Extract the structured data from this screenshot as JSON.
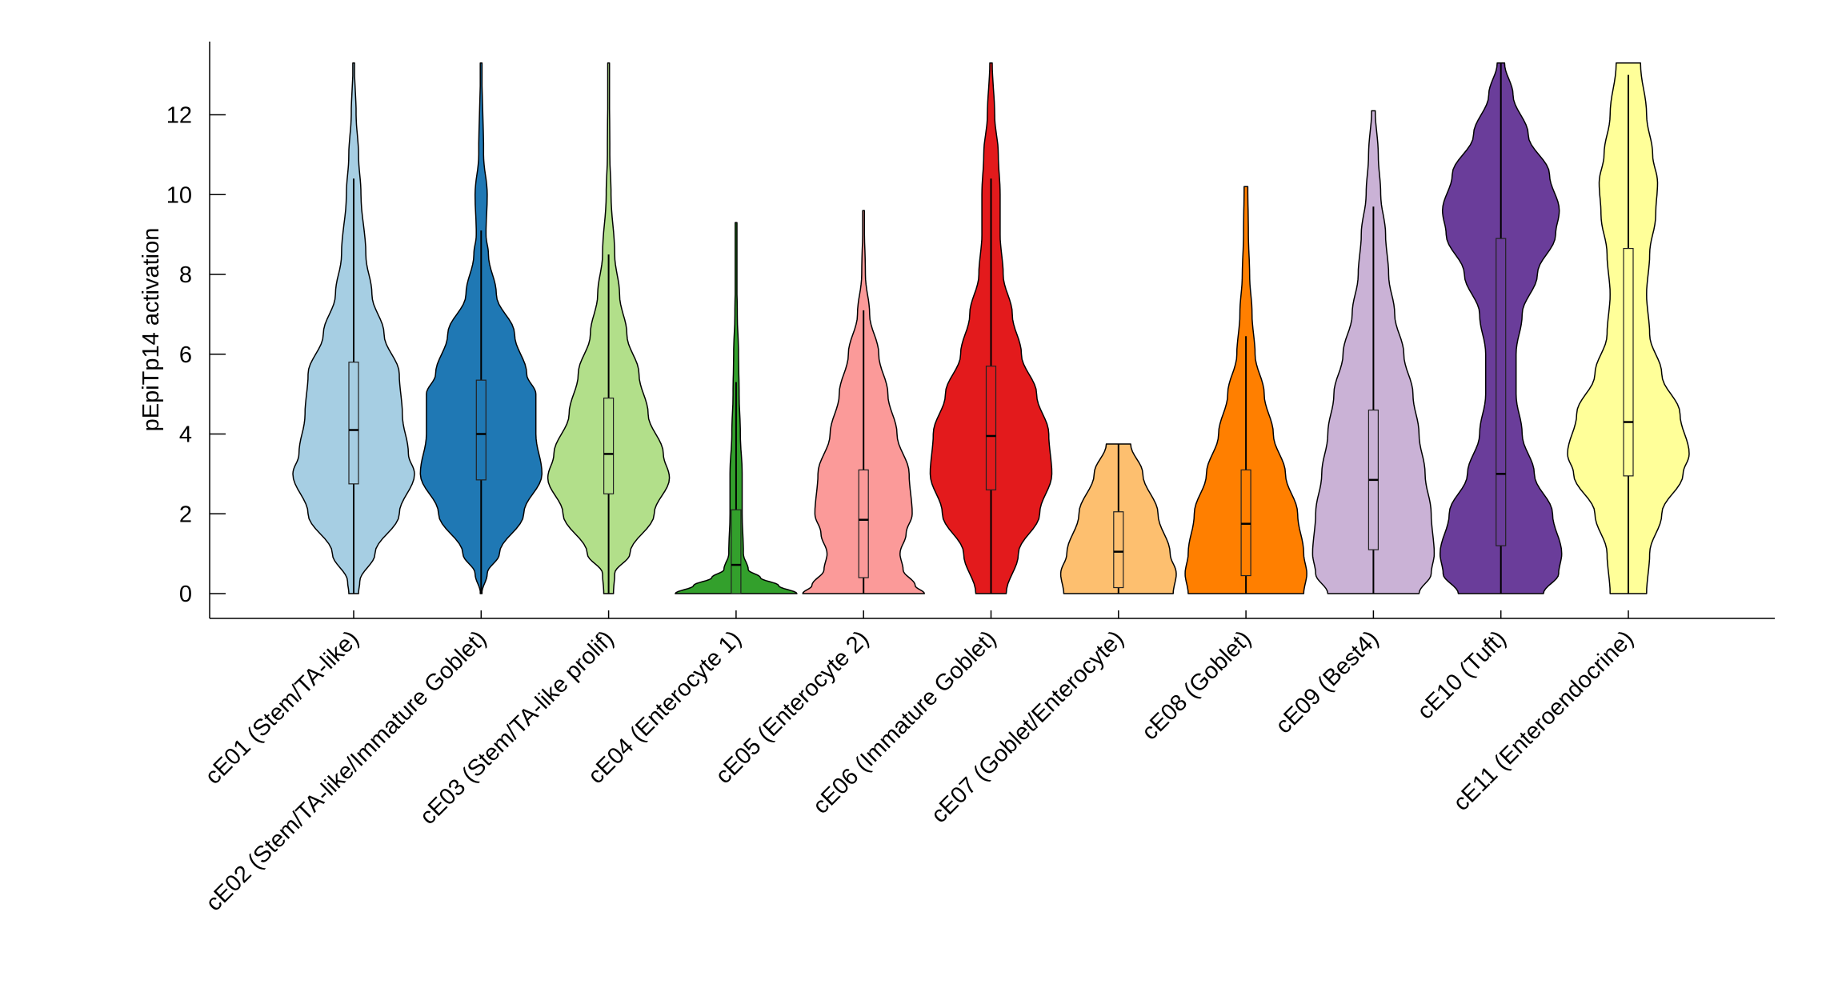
{
  "chart_data": {
    "type": "violin",
    "title": "",
    "xlabel": "",
    "ylabel": "pEpiTp14 activation",
    "ylim": [
      -0.65,
      13.8
    ],
    "yticks": [
      0,
      2,
      4,
      6,
      8,
      10,
      12
    ],
    "grid": false,
    "legend": "none",
    "categories": [
      "cE01 (Stem/TA-like)",
      "cE02 (Stem/TA-like/Immature Goblet)",
      "cE03 (Stem/TA-like prolif)",
      "cE04 (Enterocyte 1)",
      "cE05 (Enterocyte 2)",
      "cE06 (Immature Goblet)",
      "cE07 (Goblet/Enterocyte)",
      "cE08 (Goblet)",
      "cE09 (Best4)",
      "cE10 (Tuft)",
      "cE11 (Enteroendocrine)"
    ],
    "series": [
      {
        "name": "cE01 (Stem/TA-like)",
        "color": "#a6cee3",
        "min": 0,
        "max": 13.3,
        "q1": 2.75,
        "median": 4.1,
        "q3": 5.8,
        "whisker_low": 0,
        "whisker_high": 10.4,
        "density": [
          [
            0,
            0.08
          ],
          [
            0.3,
            0.1
          ],
          [
            1,
            0.35
          ],
          [
            2,
            0.75
          ],
          [
            3,
            1.0
          ],
          [
            3.5,
            0.9
          ],
          [
            4.5,
            0.8
          ],
          [
            5.5,
            0.75
          ],
          [
            6.5,
            0.5
          ],
          [
            7.5,
            0.3
          ],
          [
            8.5,
            0.2
          ],
          [
            10,
            0.12
          ],
          [
            11,
            0.08
          ],
          [
            12,
            0.04
          ],
          [
            13.3,
            0.01
          ]
        ]
      },
      {
        "name": "cE02 (Stem/TA-like/Immature Goblet)",
        "color": "#1f78b4",
        "min": 0,
        "max": 13.3,
        "q1": 2.85,
        "median": 4.0,
        "q3": 5.35,
        "whisker_low": 0,
        "whisker_high": 9.1,
        "density": [
          [
            0,
            0.01
          ],
          [
            0.5,
            0.1
          ],
          [
            1,
            0.3
          ],
          [
            2,
            0.7
          ],
          [
            3,
            1.0
          ],
          [
            4,
            0.9
          ],
          [
            5,
            0.9
          ],
          [
            5.5,
            0.75
          ],
          [
            6.5,
            0.55
          ],
          [
            7.5,
            0.25
          ],
          [
            8.5,
            0.12
          ],
          [
            9,
            0.08
          ],
          [
            10,
            0.1
          ],
          [
            11,
            0.04
          ],
          [
            13.3,
            0.01
          ]
        ]
      },
      {
        "name": "cE03 (Stem/TA-like prolif)",
        "color": "#b2df8a",
        "min": 0,
        "max": 13.3,
        "q1": 2.5,
        "median": 3.5,
        "q3": 4.9,
        "whisker_low": 0,
        "whisker_high": 8.5,
        "density": [
          [
            0,
            0.08
          ],
          [
            0.5,
            0.1
          ],
          [
            1,
            0.35
          ],
          [
            2,
            0.75
          ],
          [
            2.9,
            1.0
          ],
          [
            3.5,
            0.9
          ],
          [
            4.5,
            0.65
          ],
          [
            5.5,
            0.5
          ],
          [
            6.5,
            0.3
          ],
          [
            7.5,
            0.18
          ],
          [
            8.5,
            0.1
          ],
          [
            10,
            0.04
          ],
          [
            11,
            0.02
          ],
          [
            13.3,
            0.01
          ]
        ]
      },
      {
        "name": "cE04 (Enterocyte 1)",
        "color": "#33a02c",
        "min": 0,
        "max": 9.3,
        "q1": 0,
        "median": 0.72,
        "q3": 2.1,
        "whisker_low": 0,
        "whisker_high": 5.3,
        "density": [
          [
            0,
            1.0
          ],
          [
            0.2,
            0.7
          ],
          [
            0.4,
            0.4
          ],
          [
            0.6,
            0.2
          ],
          [
            1,
            0.12
          ],
          [
            2,
            0.1
          ],
          [
            3,
            0.1
          ],
          [
            4,
            0.07
          ],
          [
            5,
            0.05
          ],
          [
            6,
            0.04
          ],
          [
            7,
            0.02
          ],
          [
            8,
            0.01
          ],
          [
            9.3,
            0.005
          ]
        ]
      },
      {
        "name": "cE05 (Enterocyte 2)",
        "color": "#fb9a99",
        "min": 0,
        "max": 9.6,
        "q1": 0.4,
        "median": 1.85,
        "q3": 3.1,
        "whisker_low": 0,
        "whisker_high": 7.1,
        "density": [
          [
            0,
            1.0
          ],
          [
            0.2,
            0.85
          ],
          [
            0.6,
            0.65
          ],
          [
            1,
            0.6
          ],
          [
            1.5,
            0.7
          ],
          [
            2,
            0.8
          ],
          [
            3,
            0.75
          ],
          [
            4,
            0.55
          ],
          [
            5,
            0.4
          ],
          [
            6,
            0.25
          ],
          [
            7,
            0.1
          ],
          [
            8,
            0.03
          ],
          [
            9.6,
            0.005
          ]
        ]
      },
      {
        "name": "cE06 (Immature Goblet)",
        "color": "#e31a1c",
        "min": 0,
        "max": 13.3,
        "q1": 2.6,
        "median": 3.95,
        "q3": 5.7,
        "whisker_low": 0,
        "whisker_high": 10.4,
        "density": [
          [
            0,
            0.25
          ],
          [
            1,
            0.45
          ],
          [
            2,
            0.8
          ],
          [
            3,
            1.0
          ],
          [
            4,
            0.95
          ],
          [
            5,
            0.75
          ],
          [
            6,
            0.5
          ],
          [
            7,
            0.35
          ],
          [
            8,
            0.2
          ],
          [
            9,
            0.15
          ],
          [
            10,
            0.15
          ],
          [
            11,
            0.12
          ],
          [
            12,
            0.06
          ],
          [
            13.3,
            0.02
          ]
        ]
      },
      {
        "name": "cE07 (Goblet/Enterocyte)",
        "color": "#fdbf6f",
        "min": 0,
        "max": 3.75,
        "q1": 0.15,
        "median": 1.05,
        "q3": 2.05,
        "whisker_low": 0,
        "whisker_high": 3.75,
        "density": [
          [
            0,
            0.9
          ],
          [
            0.5,
            0.95
          ],
          [
            1,
            0.85
          ],
          [
            2,
            0.65
          ],
          [
            3,
            0.4
          ],
          [
            3.75,
            0.2
          ]
        ]
      },
      {
        "name": "cE08 (Goblet)",
        "color": "#ff7f00",
        "min": 0,
        "max": 10.2,
        "q1": 0.45,
        "median": 1.75,
        "q3": 3.1,
        "whisker_low": 0,
        "whisker_high": 6.45,
        "density": [
          [
            0,
            0.95
          ],
          [
            0.5,
            1.0
          ],
          [
            1,
            0.95
          ],
          [
            2,
            0.85
          ],
          [
            3,
            0.65
          ],
          [
            4,
            0.45
          ],
          [
            5,
            0.3
          ],
          [
            6,
            0.15
          ],
          [
            7,
            0.1
          ],
          [
            8,
            0.06
          ],
          [
            9,
            0.04
          ],
          [
            10.2,
            0.03
          ]
        ]
      },
      {
        "name": "cE09 (Best4)",
        "color": "#cab2d6",
        "min": 0,
        "max": 12.1,
        "q1": 1.1,
        "median": 2.85,
        "q3": 4.6,
        "whisker_low": 0,
        "whisker_high": 9.7,
        "density": [
          [
            0,
            0.75
          ],
          [
            0.5,
            0.95
          ],
          [
            1,
            1.0
          ],
          [
            2,
            0.95
          ],
          [
            3,
            0.85
          ],
          [
            4,
            0.75
          ],
          [
            5,
            0.65
          ],
          [
            6,
            0.5
          ],
          [
            7,
            0.35
          ],
          [
            8,
            0.25
          ],
          [
            9,
            0.2
          ],
          [
            10,
            0.12
          ],
          [
            11,
            0.08
          ],
          [
            12.1,
            0.03
          ]
        ]
      },
      {
        "name": "cE10 (Tuft)",
        "color": "#6a3d9a",
        "min": 0,
        "max": 13.3,
        "q1": 1.2,
        "median": 3.0,
        "q3": 8.9,
        "whisker_low": 0,
        "whisker_high": 13.3,
        "density": [
          [
            0,
            0.7
          ],
          [
            0.5,
            0.95
          ],
          [
            1,
            1.0
          ],
          [
            2,
            0.85
          ],
          [
            3,
            0.55
          ],
          [
            4,
            0.35
          ],
          [
            5,
            0.25
          ],
          [
            6,
            0.25
          ],
          [
            7,
            0.35
          ],
          [
            8,
            0.6
          ],
          [
            9,
            0.9
          ],
          [
            9.6,
            0.96
          ],
          [
            10.5,
            0.8
          ],
          [
            11.5,
            0.45
          ],
          [
            12.5,
            0.2
          ],
          [
            13.3,
            0.06
          ]
        ]
      },
      {
        "name": "cE11 (Enteroendocrine)",
        "color": "#ffff99",
        "min": 0,
        "max": 13.3,
        "q1": 2.95,
        "median": 4.3,
        "q3": 8.65,
        "whisker_low": 0,
        "whisker_high": 13.0,
        "density": [
          [
            0,
            0.3
          ],
          [
            1,
            0.35
          ],
          [
            2,
            0.55
          ],
          [
            3,
            0.9
          ],
          [
            3.5,
            1.0
          ],
          [
            4.5,
            0.85
          ],
          [
            5.5,
            0.55
          ],
          [
            6.5,
            0.35
          ],
          [
            7.5,
            0.3
          ],
          [
            8.5,
            0.35
          ],
          [
            9.5,
            0.45
          ],
          [
            10.3,
            0.48
          ],
          [
            11,
            0.4
          ],
          [
            12,
            0.3
          ],
          [
            13.3,
            0.2
          ]
        ]
      }
    ]
  }
}
